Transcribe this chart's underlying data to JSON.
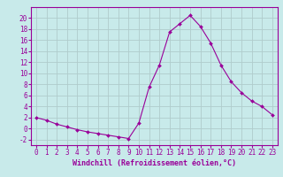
{
  "x": [
    0,
    1,
    2,
    3,
    4,
    5,
    6,
    7,
    8,
    9,
    10,
    11,
    12,
    13,
    14,
    15,
    16,
    17,
    18,
    19,
    20,
    21,
    22,
    23
  ],
  "y": [
    2,
    1.5,
    0.8,
    0.3,
    -0.2,
    -0.6,
    -0.9,
    -1.2,
    -1.5,
    -1.8,
    1.0,
    7.5,
    11.5,
    17.5,
    19.0,
    20.5,
    18.5,
    15.5,
    11.5,
    8.5,
    6.5,
    5.0,
    4.0,
    2.5
  ],
  "line_color": "#990099",
  "marker": "D",
  "marker_size": 2,
  "bg_color": "#c8eaea",
  "grid_color": "#b0cccc",
  "xlim": [
    -0.5,
    23.5
  ],
  "ylim": [
    -3,
    22
  ],
  "yticks": [
    -2,
    0,
    2,
    4,
    6,
    8,
    10,
    12,
    14,
    16,
    18,
    20
  ],
  "xticks": [
    0,
    1,
    2,
    3,
    4,
    5,
    6,
    7,
    8,
    9,
    10,
    11,
    12,
    13,
    14,
    15,
    16,
    17,
    18,
    19,
    20,
    21,
    22,
    23
  ],
  "tick_color": "#990099",
  "xlabel": "Windchill (Refroidissement éolien,°C)",
  "label_fontsize": 6,
  "tick_fontsize": 5.5
}
